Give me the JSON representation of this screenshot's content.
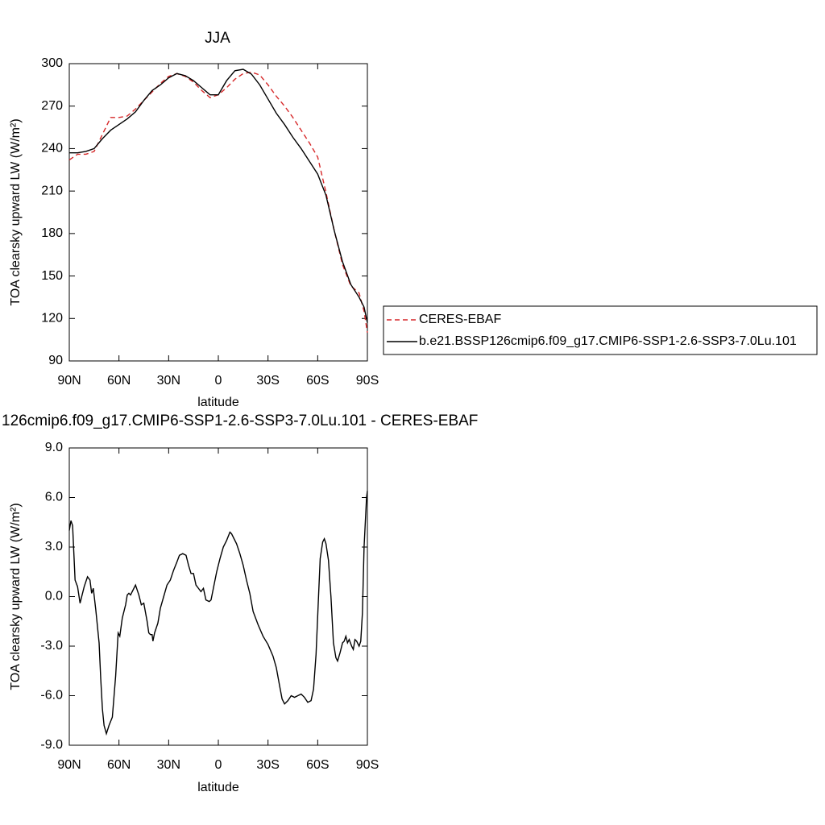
{
  "chart_data": [
    {
      "type": "line",
      "title": "JJA",
      "xlabel": "latitude",
      "ylabel": "TOA clearsky upward LW (W/m²)",
      "x": [
        90,
        85,
        80,
        75,
        70,
        65,
        60,
        55,
        50,
        45,
        40,
        35,
        30,
        25,
        20,
        15,
        10,
        5,
        0,
        -5,
        -10,
        -15,
        -20,
        -25,
        -30,
        -35,
        -40,
        -45,
        -50,
        -55,
        -60,
        -65,
        -70,
        -75,
        -80,
        -85,
        -88,
        -90
      ],
      "series": [
        {
          "name": "CERES-EBAF",
          "color": "#d62728",
          "linestyle": "dashed",
          "values": [
            232,
            236,
            236,
            238,
            250,
            262,
            262,
            263,
            268,
            274,
            280,
            286,
            291,
            293,
            291,
            287,
            281,
            276,
            278,
            283,
            289,
            293,
            294,
            292,
            285,
            277,
            270,
            262,
            253,
            244,
            234,
            209,
            182,
            158,
            143,
            138,
            125,
            110
          ]
        },
        {
          "name": "b.e21.BSSP126cmip6.f09_g17.CMIP6-SSP1-2.6-SSP3-7.0Lu.101",
          "color": "#000000",
          "linestyle": "solid",
          "values": [
            237,
            237,
            238,
            240,
            247,
            253,
            257,
            261,
            266,
            274,
            281,
            285,
            290,
            293,
            291.5,
            288,
            283,
            278,
            278,
            288,
            295,
            296,
            292.6,
            285,
            275,
            265,
            257,
            248,
            240,
            231,
            222,
            207,
            182,
            160,
            144,
            135,
            128,
            117
          ]
        }
      ],
      "xlim": [
        90,
        -90
      ],
      "ylim": [
        90,
        300
      ],
      "xticks": [
        {
          "value": 90,
          "label": "90N"
        },
        {
          "value": 60,
          "label": "60N"
        },
        {
          "value": 30,
          "label": "30N"
        },
        0,
        {
          "value": -30,
          "label": "30S"
        },
        {
          "value": -60,
          "label": "60S"
        },
        {
          "value": -90,
          "label": "90S"
        }
      ],
      "yticks": [
        90,
        120,
        150,
        180,
        210,
        240,
        270,
        300
      ],
      "legend": "right"
    },
    {
      "type": "line",
      "title": "126cmip6.f09_g17.CMIP6-SSP1-2.6-SSP3-7.0Lu.101 - CERES-EBAF",
      "xlabel": "latitude",
      "ylabel": "TOA clearsky upward LW (W/m²)",
      "x": [
        90,
        89,
        88,
        86.5,
        85,
        83.5,
        81,
        79,
        77.5,
        76.5,
        75.5,
        74,
        72,
        71,
        70,
        69,
        67.6,
        66,
        64,
        62,
        60.5,
        59.5,
        58,
        56,
        55,
        54,
        53,
        51,
        50,
        48,
        46.5,
        45,
        43,
        42,
        41,
        40,
        39.5,
        38.5,
        36.5,
        35,
        33,
        31,
        29,
        27,
        25,
        23.5,
        21.5,
        19.5,
        18,
        16.5,
        15,
        13.5,
        12,
        10.5,
        9,
        7.5,
        5.5,
        4.4,
        3,
        1,
        -1,
        -3,
        -5,
        -7,
        -8,
        -9.5,
        -11,
        -13,
        -15,
        -17,
        -19,
        -21,
        -24,
        -27,
        -30,
        -33,
        -35,
        -37,
        -38.5,
        -40,
        -42,
        -44,
        -46,
        -48,
        -50,
        -52,
        -54,
        -56,
        -57.5,
        -59,
        -60.5,
        -61.5,
        -63,
        -64,
        -65,
        -66.5,
        -68,
        -69.5,
        -71,
        -72,
        -73.5,
        -75,
        -76,
        -77,
        -78,
        -79,
        -80.5,
        -81.5,
        -82.5,
        -83.5,
        -85,
        -86,
        -87,
        -88,
        -89,
        -89.5,
        -90
      ],
      "values": [
        4.0,
        4.6,
        4.3,
        1.0,
        0.6,
        -0.4,
        0.6,
        1.2,
        1.0,
        0.2,
        0.5,
        -0.8,
        -2.8,
        -5.0,
        -6.8,
        -7.8,
        -8.3,
        -7.8,
        -7.3,
        -4.8,
        -2.2,
        -2.4,
        -1.3,
        -0.5,
        0.1,
        0.2,
        0.1,
        0.5,
        0.7,
        0.1,
        -0.5,
        -0.4,
        -1.5,
        -2.2,
        -2.3,
        -2.3,
        -2.7,
        -2.2,
        -1.6,
        -0.7,
        0.0,
        0.7,
        1.0,
        1.6,
        2.1,
        2.5,
        2.6,
        2.5,
        1.9,
        1.4,
        1.4,
        0.7,
        0.5,
        0.3,
        0.5,
        -0.2,
        -0.3,
        -0.2,
        0.5,
        1.5,
        2.3,
        3.0,
        3.4,
        3.9,
        3.8,
        3.5,
        3.2,
        2.6,
        1.9,
        1.0,
        0.2,
        -0.9,
        -1.7,
        -2.4,
        -2.9,
        -3.6,
        -4.3,
        -5.4,
        -6.2,
        -6.5,
        -6.3,
        -6.0,
        -6.1,
        -6.0,
        -5.9,
        -6.1,
        -6.4,
        -6.3,
        -5.6,
        -3.5,
        0.0,
        2.3,
        3.3,
        3.5,
        3.2,
        2.2,
        0.0,
        -2.8,
        -3.7,
        -3.9,
        -3.4,
        -2.8,
        -2.7,
        -2.4,
        -2.8,
        -2.6,
        -3.0,
        -3.2,
        -2.6,
        -2.7,
        -3.0,
        -2.7,
        -1.0,
        3.0,
        5.0,
        6.0,
        6.4
      ],
      "color": "#000000",
      "xlim": [
        90,
        -90
      ],
      "ylim": [
        -9,
        9
      ],
      "xticks": [
        {
          "value": 90,
          "label": "90N"
        },
        {
          "value": 60,
          "label": "60N"
        },
        {
          "value": 30,
          "label": "30N"
        },
        0,
        {
          "value": -30,
          "label": "30S"
        },
        {
          "value": -60,
          "label": "60S"
        },
        {
          "value": -90,
          "label": "90S"
        }
      ],
      "yticks": [
        {
          "value": -9,
          "label": "-9.0"
        },
        {
          "value": -6,
          "label": "-6.0"
        },
        {
          "value": -3,
          "label": "-3.0"
        },
        {
          "value": 0,
          "label": "0.0"
        },
        {
          "value": 3,
          "label": "3.0"
        },
        {
          "value": 6,
          "label": "6.0"
        },
        {
          "value": 9,
          "label": "9.0"
        }
      ]
    }
  ]
}
